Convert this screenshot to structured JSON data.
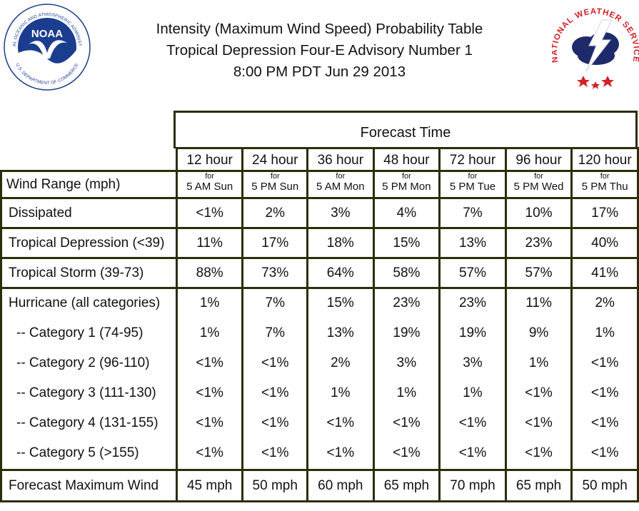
{
  "title": {
    "line1": "Intensity (Maximum Wind Speed) Probability Table",
    "line2": "Tropical Depression Four-E Advisory Number 1",
    "line3": "8:00 PM PDT Jun 29 2013"
  },
  "logos": {
    "noaa_text": "NOAA",
    "noaa_ring": "NATIONAL OCEANIC AND ATMOSPHERIC ADMINISTRATION",
    "noaa_ring_bottom": "U.S. DEPARTMENT OF COMMERCE",
    "nws_ring": "NATIONAL WEATHER SERVICE"
  },
  "table": {
    "forecast_time_label": "Forecast Time",
    "wind_range_label": "Wind Range (mph)",
    "for_label": "for",
    "columns": [
      {
        "hour": "12 hour",
        "when": "5 AM Sun"
      },
      {
        "hour": "24 hour",
        "when": "5 PM Sun"
      },
      {
        "hour": "36 hour",
        "when": "5 AM Mon"
      },
      {
        "hour": "48 hour",
        "when": "5 PM Mon"
      },
      {
        "hour": "72 hour",
        "when": "5 PM Tue"
      },
      {
        "hour": "96 hour",
        "when": "5 PM Wed"
      },
      {
        "hour": "120 hour",
        "when": "5 PM Thu"
      }
    ],
    "rows": {
      "dissipated": {
        "label": "Dissipated",
        "values": [
          "<1%",
          "2%",
          "3%",
          "4%",
          "7%",
          "10%",
          "17%"
        ]
      },
      "depression": {
        "label": "Tropical Depression (<39)",
        "values": [
          "11%",
          "17%",
          "18%",
          "15%",
          "13%",
          "23%",
          "40%"
        ]
      },
      "storm": {
        "label": "Tropical Storm (39-73)",
        "values": [
          "88%",
          "73%",
          "64%",
          "58%",
          "57%",
          "57%",
          "41%"
        ]
      },
      "hurricane": {
        "label": "Hurricane (all categories)",
        "values": [
          "1%",
          "7%",
          "15%",
          "23%",
          "23%",
          "11%",
          "2%"
        ],
        "categories": [
          {
            "label": "-- Category 1 (74-95)",
            "values": [
              "1%",
              "7%",
              "13%",
              "19%",
              "19%",
              "9%",
              "1%"
            ]
          },
          {
            "label": "-- Category 2 (96-110)",
            "values": [
              "<1%",
              "<1%",
              "2%",
              "3%",
              "3%",
              "1%",
              "<1%"
            ]
          },
          {
            "label": "-- Category 3 (111-130)",
            "values": [
              "<1%",
              "<1%",
              "1%",
              "1%",
              "1%",
              "<1%",
              "<1%"
            ]
          },
          {
            "label": "-- Category 4 (131-155)",
            "values": [
              "<1%",
              "<1%",
              "<1%",
              "<1%",
              "<1%",
              "<1%",
              "<1%"
            ]
          },
          {
            "label": "-- Category 5 (>155)",
            "values": [
              "<1%",
              "<1%",
              "<1%",
              "<1%",
              "<1%",
              "<1%",
              "<1%"
            ]
          }
        ]
      },
      "max_wind": {
        "label": "Forecast Maximum Wind",
        "values": [
          "45 mph",
          "50 mph",
          "60 mph",
          "65 mph",
          "70 mph",
          "65 mph",
          "50 mph"
        ]
      }
    }
  },
  "colors": {
    "border": "#2b2e08",
    "noaa_blue": "#1a3d8f",
    "nws_red": "#d42027",
    "nws_navy": "#1f2a6b"
  }
}
